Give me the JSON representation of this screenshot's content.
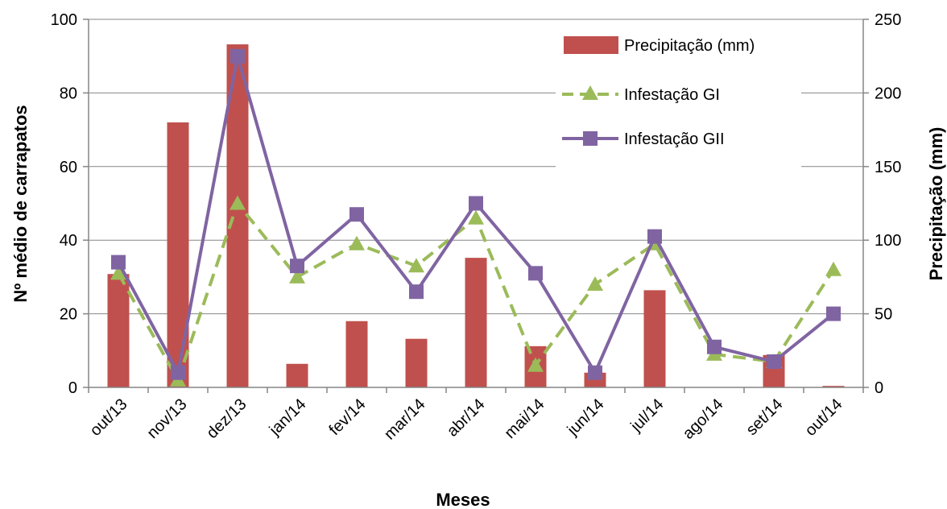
{
  "chart_data": {
    "type": "bar",
    "categories": [
      "out/13",
      "nov/13",
      "dez/13",
      "jan/14",
      "fev/14",
      "mar/14",
      "abr/14",
      "mai/14",
      "jun/14",
      "jul/14",
      "ago/14",
      "set/14",
      "out/14"
    ],
    "xlabel": "Meses",
    "ylabel": "Nº médio de carrapatos",
    "y2label": "Precipitação (mm)",
    "ylim": [
      0,
      100
    ],
    "y2lim": [
      0,
      250
    ],
    "yticks": [
      "0",
      "20",
      "40",
      "60",
      "80",
      "100"
    ],
    "y2ticks": [
      "0",
      "50",
      "100",
      "150",
      "200",
      "250"
    ],
    "grid": true,
    "legend_placement": "top-right",
    "series": [
      {
        "name": "Precipitação (mm)",
        "kind": "bar",
        "axis": "right",
        "color": "#C0504D",
        "values": [
          77,
          180,
          233,
          16,
          45,
          33,
          88,
          28,
          10,
          66,
          0,
          22,
          1
        ]
      },
      {
        "name": "Infestação GI",
        "kind": "line-dashed",
        "marker": "triangle",
        "axis": "left",
        "color": "#9BBB59",
        "values": [
          31,
          2,
          50,
          30,
          39,
          33,
          46,
          6,
          28,
          39,
          9,
          7,
          32
        ]
      },
      {
        "name": "Infestação GII",
        "kind": "line",
        "marker": "square",
        "axis": "left",
        "color": "#8064A2",
        "values": [
          34,
          4,
          90,
          33,
          47,
          26,
          50,
          31,
          4,
          41,
          11,
          7,
          20
        ]
      }
    ]
  }
}
